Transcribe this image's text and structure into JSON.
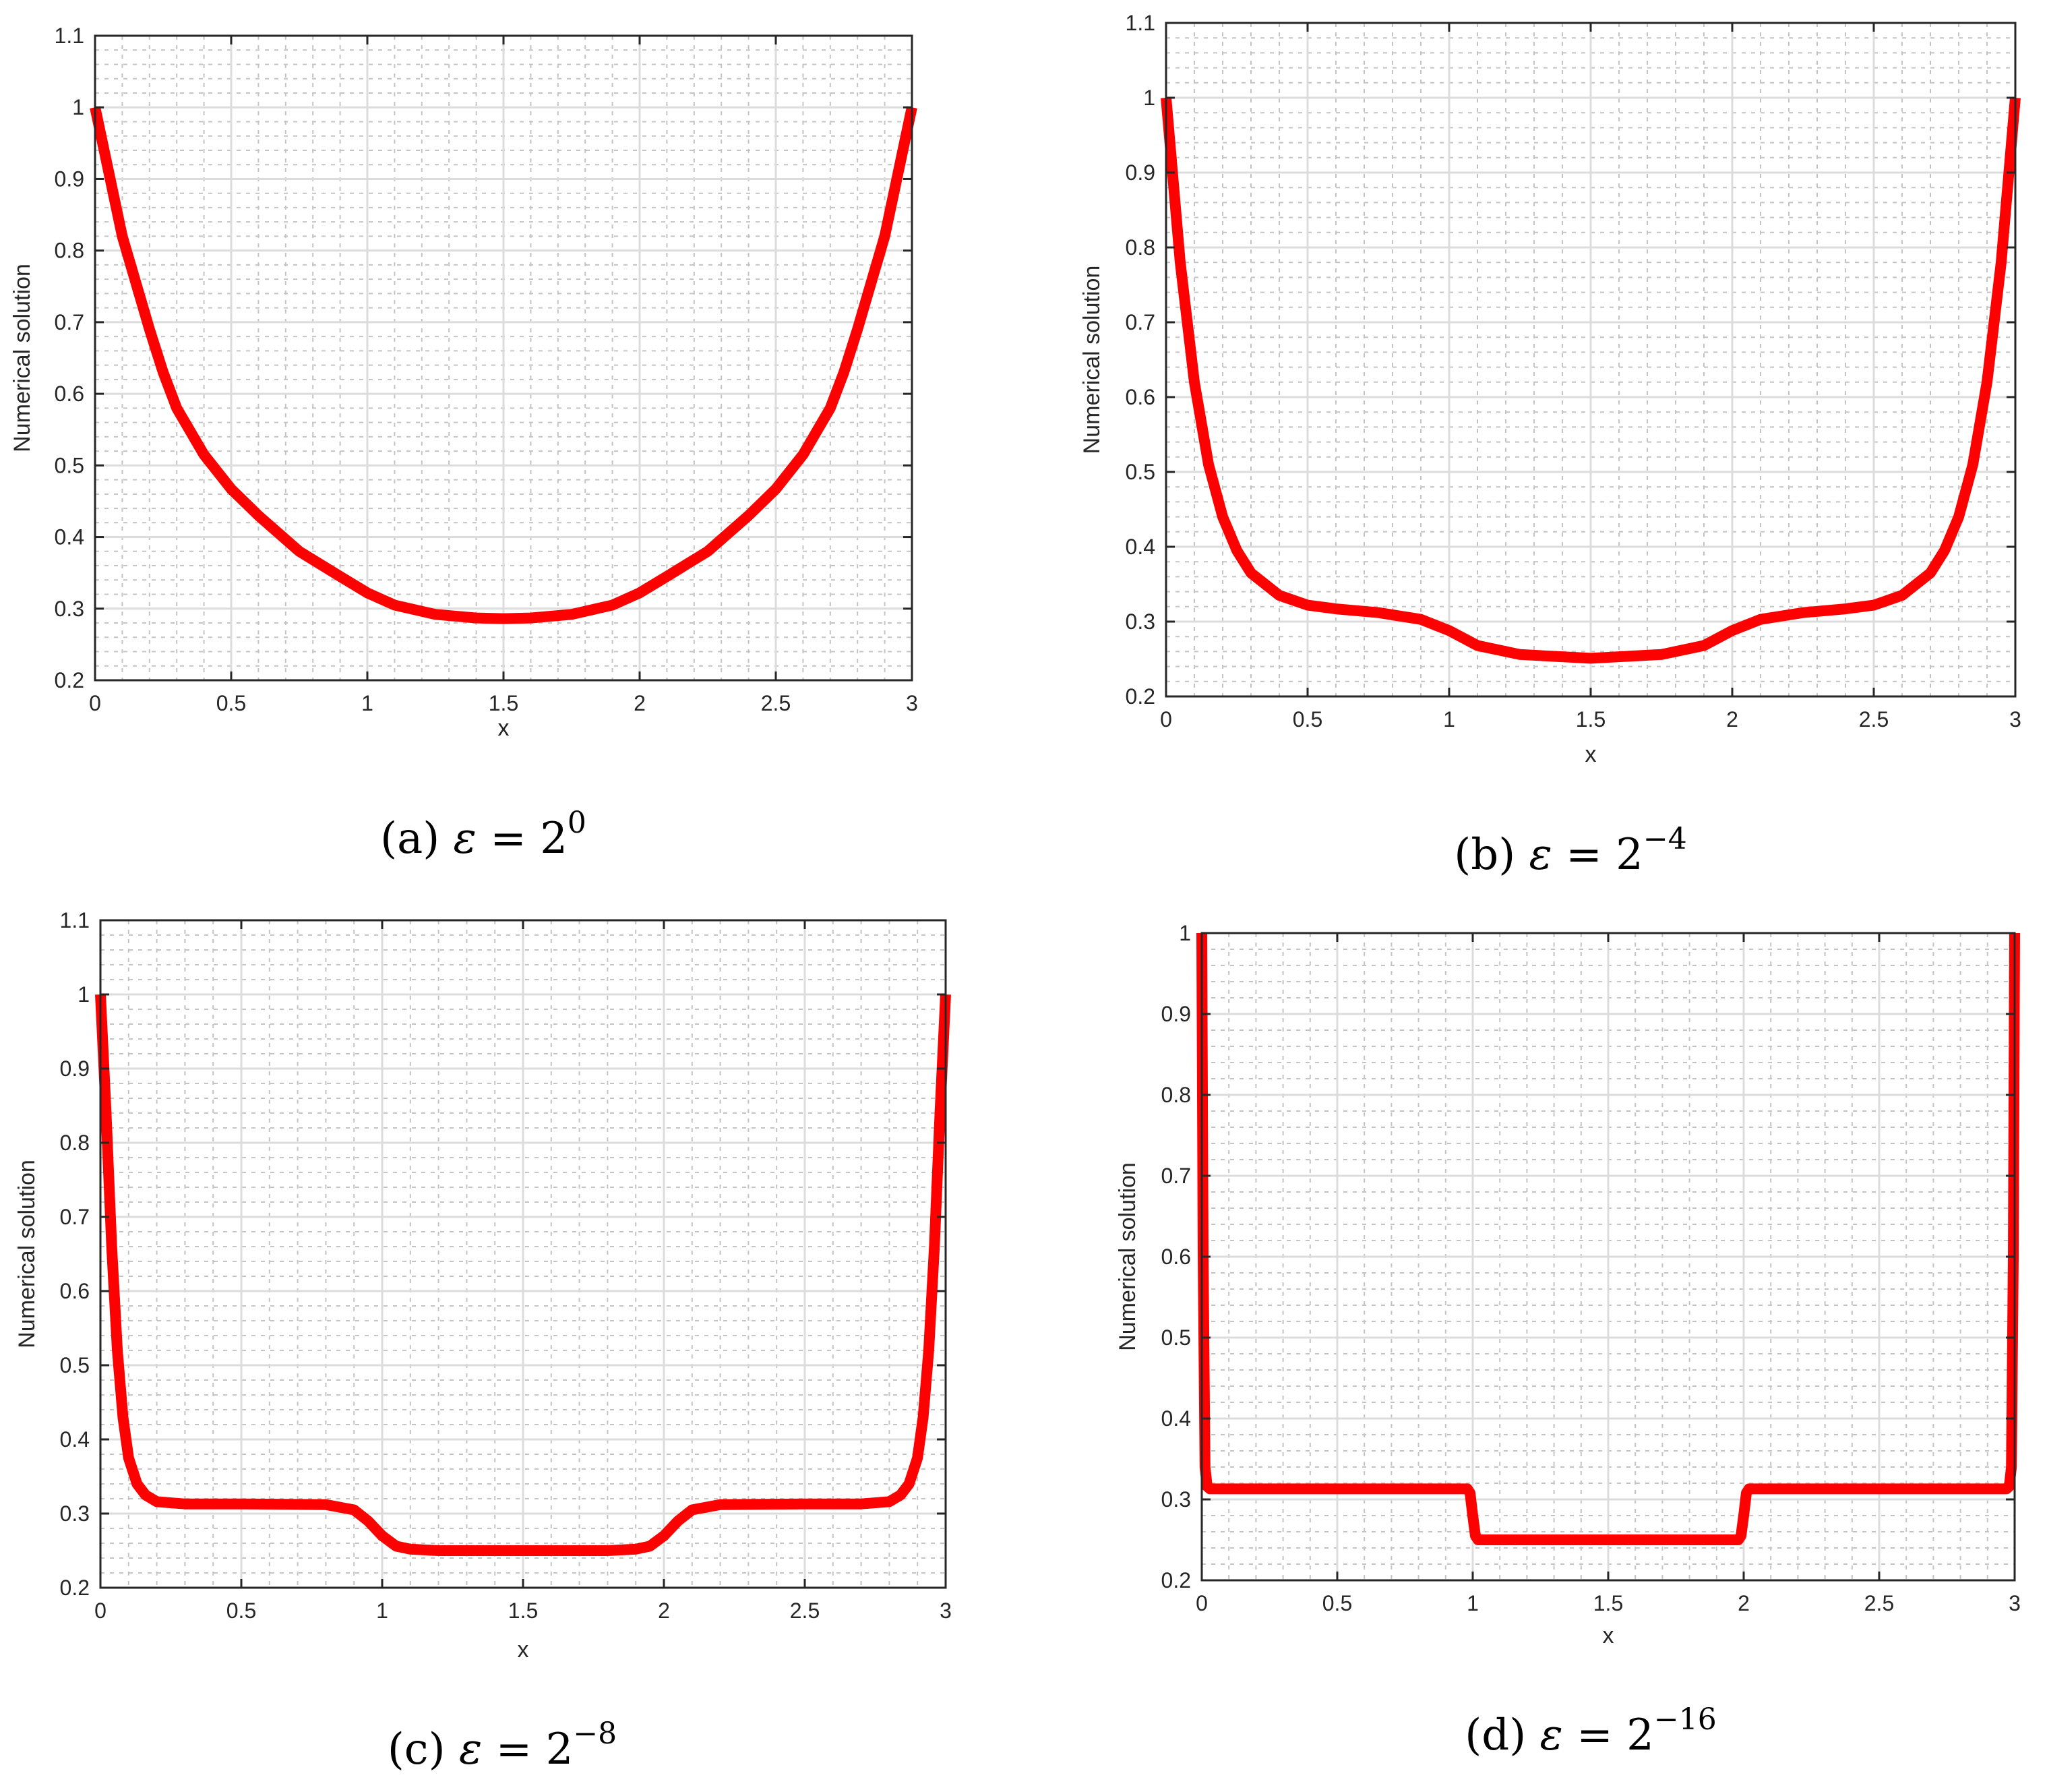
{
  "figure": {
    "line_color": "#ff0000",
    "axis_color": "#262626",
    "major_grid_color": "#dcdcdc",
    "minor_grid_color": "#c4c4c4"
  },
  "chart_data": [
    {
      "id": "a",
      "type": "line",
      "caption": {
        "label": "(a)",
        "symbol": "ε",
        "equals": "=",
        "base": "2",
        "exponent": "0"
      },
      "title": "",
      "xlabel": "x",
      "ylabel": "Numerical solution",
      "xlim": [
        0,
        3
      ],
      "ylim": [
        0.2,
        1.1
      ],
      "xticks": [
        "0",
        "0.5",
        "1",
        "1.5",
        "2",
        "2.5",
        "3"
      ],
      "yticks": [
        "0.2",
        "0.3",
        "0.4",
        "0.5",
        "0.6",
        "0.7",
        "0.8",
        "0.9",
        "1",
        "1.1"
      ],
      "grid": true,
      "minor_grid": true,
      "legend": null,
      "series": [
        {
          "name": "Numerical solution",
          "color": "#ff0000",
          "x": [
            0,
            0.1,
            0.2,
            0.25,
            0.3,
            0.4,
            0.5,
            0.6,
            0.75,
            0.9,
            1.0,
            1.1,
            1.25,
            1.4,
            1.5,
            1.6,
            1.75,
            1.9,
            2.0,
            2.1,
            2.25,
            2.4,
            2.5,
            2.6,
            2.7,
            2.75,
            2.8,
            2.9,
            3.0
          ],
          "y": [
            1.0,
            0.82,
            0.69,
            0.63,
            0.58,
            0.515,
            0.467,
            0.43,
            0.38,
            0.345,
            0.322,
            0.305,
            0.292,
            0.287,
            0.286,
            0.287,
            0.292,
            0.305,
            0.322,
            0.345,
            0.38,
            0.43,
            0.467,
            0.515,
            0.58,
            0.63,
            0.69,
            0.82,
            1.0
          ]
        }
      ]
    },
    {
      "id": "b",
      "type": "line",
      "caption": {
        "label": "(b)",
        "symbol": "ε",
        "equals": "=",
        "base": "2",
        "exponent": "−4"
      },
      "title": "",
      "xlabel": "x",
      "ylabel": "Numerical solution",
      "xlim": [
        0,
        3
      ],
      "ylim": [
        0.2,
        1.1
      ],
      "xticks": [
        "0",
        "0.5",
        "1",
        "1.5",
        "2",
        "2.5",
        "3"
      ],
      "yticks": [
        "0.2",
        "0.3",
        "0.4",
        "0.5",
        "0.6",
        "0.7",
        "0.8",
        "0.9",
        "1",
        "1.1"
      ],
      "grid": true,
      "minor_grid": true,
      "legend": null,
      "series": [
        {
          "name": "Numerical solution",
          "color": "#ff0000",
          "x": [
            0,
            0.05,
            0.1,
            0.15,
            0.2,
            0.25,
            0.3,
            0.4,
            0.5,
            0.6,
            0.75,
            0.9,
            1.0,
            1.1,
            1.25,
            1.5,
            1.75,
            1.9,
            2.0,
            2.1,
            2.25,
            2.4,
            2.5,
            2.6,
            2.7,
            2.75,
            2.8,
            2.85,
            2.9,
            2.95,
            3.0
          ],
          "y": [
            1.0,
            0.78,
            0.62,
            0.51,
            0.44,
            0.395,
            0.365,
            0.335,
            0.322,
            0.317,
            0.312,
            0.303,
            0.288,
            0.268,
            0.256,
            0.251,
            0.256,
            0.268,
            0.288,
            0.303,
            0.312,
            0.317,
            0.322,
            0.335,
            0.365,
            0.395,
            0.44,
            0.51,
            0.62,
            0.78,
            1.0
          ]
        }
      ]
    },
    {
      "id": "c",
      "type": "line",
      "caption": {
        "label": "(c)",
        "symbol": "ε",
        "equals": "=",
        "base": "2",
        "exponent": "−8"
      },
      "title": "",
      "xlabel": "x",
      "ylabel": "Numerical solution",
      "xlim": [
        0,
        3
      ],
      "ylim": [
        0.2,
        1.1
      ],
      "xticks": [
        "0",
        "0.5",
        "1",
        "1.5",
        "2",
        "2.5",
        "3"
      ],
      "yticks": [
        "0.2",
        "0.3",
        "0.4",
        "0.5",
        "0.6",
        "0.7",
        "0.8",
        "0.9",
        "1",
        "1.1"
      ],
      "grid": true,
      "minor_grid": true,
      "legend": null,
      "series": [
        {
          "name": "Numerical solution",
          "color": "#ff0000",
          "x": [
            0,
            0.02,
            0.04,
            0.06,
            0.08,
            0.1,
            0.13,
            0.16,
            0.2,
            0.3,
            0.5,
            0.8,
            0.9,
            0.95,
            1.0,
            1.05,
            1.1,
            1.2,
            1.5,
            1.8,
            1.9,
            1.95,
            2.0,
            2.05,
            2.1,
            2.2,
            2.5,
            2.7,
            2.8,
            2.84,
            2.87,
            2.9,
            2.92,
            2.94,
            2.96,
            2.98,
            3.0
          ],
          "y": [
            1.0,
            0.84,
            0.66,
            0.52,
            0.43,
            0.375,
            0.34,
            0.325,
            0.316,
            0.313,
            0.313,
            0.312,
            0.305,
            0.29,
            0.27,
            0.256,
            0.252,
            0.25,
            0.25,
            0.25,
            0.252,
            0.256,
            0.27,
            0.29,
            0.305,
            0.312,
            0.313,
            0.313,
            0.316,
            0.325,
            0.34,
            0.375,
            0.43,
            0.52,
            0.66,
            0.84,
            1.0
          ]
        }
      ]
    },
    {
      "id": "d",
      "type": "line",
      "caption": {
        "label": "(d)",
        "symbol": "ε",
        "equals": "=",
        "base": "2",
        "exponent": "−16"
      },
      "title": "",
      "xlabel": "x",
      "ylabel": "Numerical solution",
      "xlim": [
        0,
        3
      ],
      "ylim": [
        0.2,
        1.0
      ],
      "xticks": [
        "0",
        "0.5",
        "1",
        "1.5",
        "2",
        "2.5",
        "3"
      ],
      "yticks": [
        "0.2",
        "0.3",
        "0.4",
        "0.5",
        "0.6",
        "0.7",
        "0.8",
        "0.9",
        "1"
      ],
      "grid": true,
      "minor_grid": true,
      "legend": null,
      "series": [
        {
          "name": "Numerical solution",
          "color": "#ff0000",
          "x": [
            0,
            0.005,
            0.012,
            0.02,
            0.03,
            0.98,
            0.99,
            1.0,
            1.01,
            1.02,
            1.98,
            1.99,
            2.0,
            2.01,
            2.02,
            2.97,
            2.98,
            2.988,
            2.995,
            3.0
          ],
          "y": [
            1.0,
            0.6,
            0.34,
            0.316,
            0.313,
            0.313,
            0.308,
            0.28,
            0.255,
            0.25,
            0.25,
            0.255,
            0.28,
            0.308,
            0.313,
            0.313,
            0.316,
            0.34,
            0.6,
            1.0
          ]
        }
      ]
    }
  ]
}
